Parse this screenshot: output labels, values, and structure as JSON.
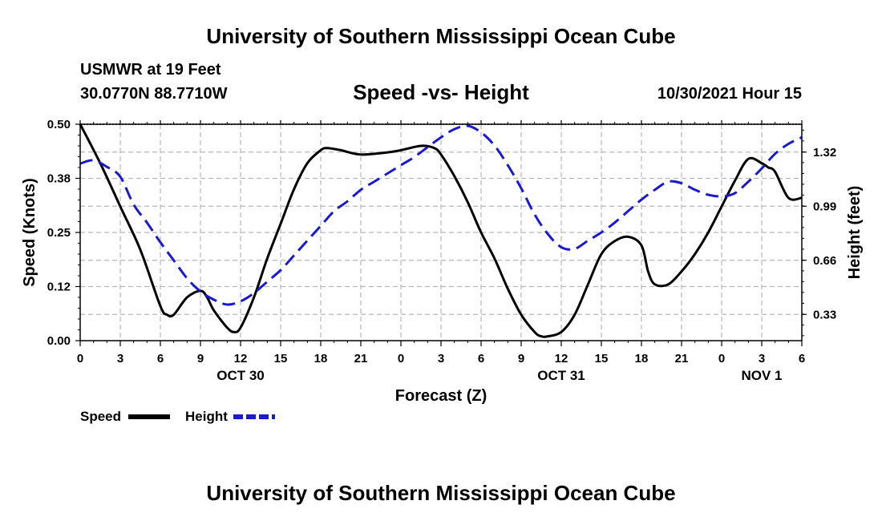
{
  "page": {
    "title": "University of Southern Mississippi Ocean Cube",
    "footer_title": "University of Southern Mississippi Ocean Cube",
    "station": "USMWR at 19 Feet",
    "coordinates": "30.0770N  88.7710W",
    "timestamp": "10/30/2021 Hour 15"
  },
  "chart_data": {
    "type": "line",
    "title": "Speed -vs- Height",
    "xlabel": "Forecast (Z)",
    "ylabel": "Speed (Knots)",
    "y2label": "Height (feet)",
    "x_range": [
      0,
      54
    ],
    "x_tick_labels": [
      "0",
      "3",
      "6",
      "9",
      "12",
      "15",
      "18",
      "21",
      "0",
      "3",
      "6",
      "9",
      "12",
      "15",
      "18",
      "21",
      "0",
      "3",
      "6"
    ],
    "date_labels": [
      {
        "x": 12,
        "label": "OCT 30"
      },
      {
        "x": 36,
        "label": "OCT 31"
      },
      {
        "x": 51,
        "label": "NOV 1"
      }
    ],
    "ylim": [
      0,
      0.5
    ],
    "y_ticks": [
      0.0,
      0.125,
      0.25,
      0.375,
      0.5
    ],
    "y_tick_labels": [
      "0.00",
      "0.12",
      "0.25",
      "0.38",
      "0.50"
    ],
    "y2lim": [
      0.17,
      1.49
    ],
    "y2_ticks": [
      0.33,
      0.66,
      0.99,
      1.32
    ],
    "y2_tick_labels": [
      "0.33",
      "0.66",
      "0.99",
      "1.32"
    ],
    "grid": true,
    "legend_position": "bottom-left",
    "series": [
      {
        "name": "Speed",
        "axis": "left",
        "color": "#000000",
        "style": "solid",
        "x": [
          0,
          1.5,
          3,
          4.5,
          6,
          6.5,
          7,
          8,
          9,
          9.5,
          10,
          11,
          11.5,
          12,
          13,
          14,
          15,
          16,
          17,
          18,
          18.5,
          19.5,
          21,
          23,
          24,
          25.5,
          26.5,
          27,
          28,
          29,
          30,
          31,
          32,
          33,
          34,
          34.5,
          35,
          36,
          37,
          38,
          39,
          40,
          41,
          42,
          42.5,
          43,
          44,
          45,
          46,
          47,
          48,
          49,
          50,
          51,
          51.5,
          52,
          53,
          54
        ],
        "values": [
          0.5,
          0.41,
          0.31,
          0.21,
          0.08,
          0.06,
          0.06,
          0.1,
          0.115,
          0.1,
          0.07,
          0.03,
          0.02,
          0.03,
          0.1,
          0.19,
          0.27,
          0.35,
          0.41,
          0.44,
          0.445,
          0.44,
          0.43,
          0.435,
          0.44,
          0.45,
          0.445,
          0.43,
          0.38,
          0.32,
          0.25,
          0.19,
          0.12,
          0.06,
          0.02,
          0.01,
          0.01,
          0.02,
          0.06,
          0.13,
          0.2,
          0.23,
          0.24,
          0.22,
          0.16,
          0.13,
          0.13,
          0.16,
          0.2,
          0.25,
          0.31,
          0.37,
          0.42,
          0.41,
          0.4,
          0.39,
          0.33,
          0.33
        ]
      },
      {
        "name": "Height",
        "axis": "right",
        "color": "#1a1acc",
        "style": "dashed",
        "x": [
          0,
          1,
          2,
          3,
          4,
          5,
          6,
          7,
          8,
          9,
          10,
          11,
          12,
          13,
          14,
          15,
          16,
          17,
          18,
          19,
          20,
          21,
          22,
          23,
          24,
          25,
          26,
          27,
          28,
          29,
          30,
          31,
          32,
          33,
          34,
          35,
          36,
          37,
          38,
          39,
          40,
          41,
          42,
          43,
          44,
          45,
          46,
          47,
          48,
          49,
          50,
          51,
          52,
          53,
          54
        ],
        "values": [
          1.25,
          1.27,
          1.23,
          1.17,
          1.0,
          0.89,
          0.77,
          0.66,
          0.55,
          0.47,
          0.42,
          0.39,
          0.41,
          0.46,
          0.53,
          0.6,
          0.69,
          0.78,
          0.87,
          0.96,
          1.02,
          1.09,
          1.14,
          1.19,
          1.24,
          1.29,
          1.35,
          1.41,
          1.46,
          1.48,
          1.44,
          1.36,
          1.24,
          1.1,
          0.94,
          0.82,
          0.74,
          0.73,
          0.78,
          0.83,
          0.89,
          0.96,
          1.03,
          1.09,
          1.14,
          1.13,
          1.09,
          1.06,
          1.05,
          1.07,
          1.14,
          1.22,
          1.31,
          1.37,
          1.41
        ]
      }
    ]
  }
}
